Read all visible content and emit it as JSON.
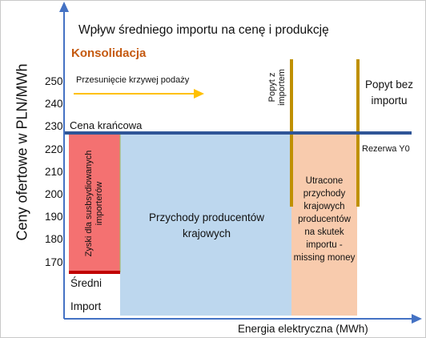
{
  "title": "Wpływ średniego importu na cenę i produkcję",
  "section_label": "Konsolidacja",
  "y_axis_label": "Ceny ofertowe w PLN/MWh",
  "x_axis_label": "Energia elektryczna (MWh)",
  "y_ticks": [
    "250",
    "240",
    "230",
    "220",
    "210",
    "200",
    "190",
    "180",
    "170"
  ],
  "supply_shift_label": "Przesunięcie krzywej podaży",
  "marginal_price_label": "Cena krańcowa",
  "average_import_label_1": "Średni",
  "average_import_label_2": "Import",
  "subsidized_profits_label": "Zyski dla susbsydiowanych importerów",
  "producer_revenue_label": "Przychody producentów krajowych",
  "lost_revenue_label": "Utracone przychody krajowych producentów na skutek importu - missing money",
  "demand_with_import_label": "Popyt z importem",
  "demand_without_import_label": "Popyt bez importu",
  "reserve_label": "Rezerwa Y0",
  "colors": {
    "axis": "#4472c4",
    "price_line": "#2f5597",
    "import_line": "#c00000",
    "demand": "#bf9000",
    "arrow": "#ffc000",
    "profits_fill": "#f47171",
    "revenue_fill": "#bdd7ee",
    "lost_fill": "#f8cbad",
    "section_label": "#c55a11"
  }
}
